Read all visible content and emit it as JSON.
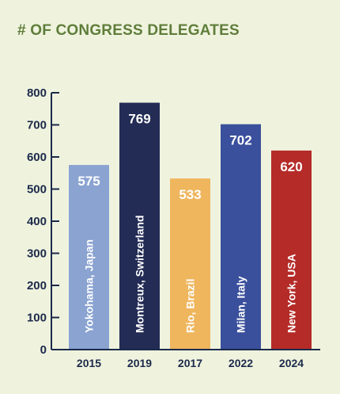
{
  "chart_data": {
    "type": "bar",
    "title": "# OF CONGRESS DELEGATES",
    "categories": [
      "2015",
      "2019",
      "2017",
      "2022",
      "2024"
    ],
    "values": [
      575,
      769,
      533,
      702,
      620
    ],
    "bar_labels": [
      "Yokohama, Japan",
      "Montreux, Switzerland",
      "Rio, Brazil",
      "Milan, Italy",
      "New York, USA"
    ],
    "colors": [
      "#8aa3d1",
      "#232c55",
      "#efb65e",
      "#3b509c",
      "#b42b28"
    ],
    "ylim": [
      0,
      800
    ],
    "yticks": [
      "0",
      "100",
      "200",
      "300",
      "400",
      "500",
      "600",
      "700",
      "800"
    ],
    "xlabel": "",
    "ylabel": "",
    "grid": false,
    "legend": "none"
  }
}
